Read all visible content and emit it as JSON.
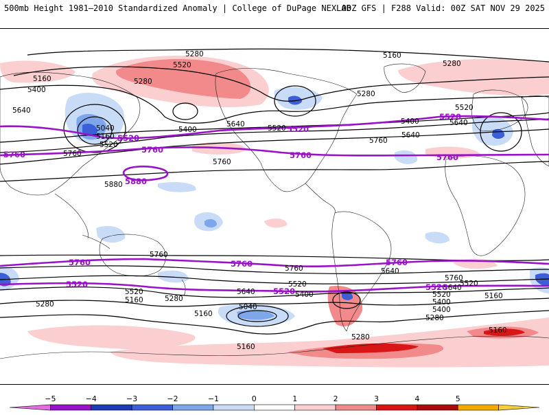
{
  "header": {
    "title": "500mb Height 1981–2010 Standardized Anomaly | College of DuPage NEXLAB",
    "run_info": "00Z GFS | F288 Valid: 00Z SAT NOV 29 2025"
  },
  "colors": {
    "anom_neg_light": "#c9dcf7",
    "anom_neg_mid": "#7ea6ea",
    "anom_neg_strong": "#3c5fd8",
    "anom_pos_light": "#fbcfd0",
    "anom_pos_mid": "#f28a8c",
    "anom_pos_strong": "#d81616",
    "contour_black": "#000000",
    "contour_purple": "#9a12c8"
  },
  "contours": {
    "black_labels": [
      "5280",
      "5160",
      "5280",
      "5520",
      "5160",
      "5280",
      "5400",
      "5640",
      "5280",
      "5040",
      "5160",
      "5400",
      "5520",
      "5640",
      "5520",
      "5400",
      "5760",
      "5880",
      "5760",
      "5640",
      "5760",
      "5520",
      "5640",
      "5760",
      "5520",
      "5160",
      "5280",
      "5520",
      "5400",
      "5640",
      "5280",
      "5160",
      "5040",
      "5160",
      "5760",
      "5640",
      "5520",
      "5400",
      "5760",
      "5640",
      "5520",
      "5400",
      "5280",
      "5160",
      "5280",
      "5160"
    ],
    "purple_labels": [
      "5520",
      "5760",
      "5520",
      "5520",
      "5760",
      "5760",
      "5880",
      "5760",
      "5760",
      "5760",
      "5520",
      "5520",
      "5520",
      "5520",
      "5760"
    ]
  },
  "colorbar": {
    "ticks": [
      "−5",
      "−4",
      "−3",
      "−2",
      "−1",
      "0",
      "1",
      "2",
      "3",
      "4",
      "5"
    ],
    "colors": [
      "#e26ce2",
      "#9a12c8",
      "#1d3cb4",
      "#3c5fd8",
      "#7ea6ea",
      "#c9dcf7",
      "#ffffff",
      "#fbcfd0",
      "#f28a8c",
      "#d81616",
      "#a80c0c",
      "#f5a800",
      "#f6ce3a"
    ]
  }
}
